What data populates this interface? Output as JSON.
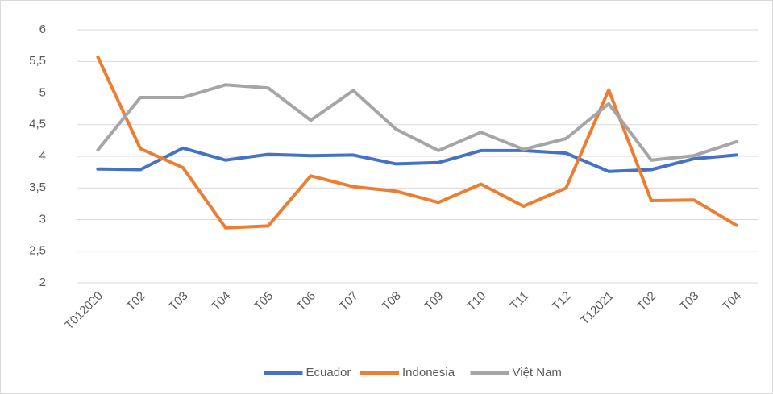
{
  "chart_data": {
    "type": "line",
    "categories": [
      "T012020",
      "T02",
      "T03",
      "T04",
      "T05",
      "T06",
      "T07",
      "T08",
      "T09",
      "T10",
      "T11",
      "T12",
      "T12021",
      "T02",
      "T03",
      "T04"
    ],
    "series": [
      {
        "name": "Ecuador",
        "color": "#4472c4",
        "values": [
          3.8,
          3.79,
          4.13,
          3.94,
          4.03,
          4.01,
          4.02,
          3.88,
          3.9,
          4.09,
          4.09,
          4.05,
          3.76,
          3.79,
          3.96,
          4.02
        ]
      },
      {
        "name": "Indonesia",
        "color": "#ed7d31",
        "values": [
          5.57,
          4.12,
          3.82,
          2.87,
          2.9,
          3.69,
          3.52,
          3.45,
          3.27,
          3.56,
          3.21,
          3.5,
          5.05,
          3.3,
          3.31,
          2.91
        ]
      },
      {
        "name": "Việt Nam",
        "color": "#a5a5a5",
        "values": [
          4.1,
          4.93,
          4.93,
          5.13,
          5.08,
          4.57,
          5.04,
          4.43,
          4.09,
          4.38,
          4.11,
          4.28,
          4.83,
          3.94,
          4.01,
          4.23
        ]
      }
    ],
    "ylim": [
      2,
      6
    ],
    "yticks": [
      2,
      {
        "value": 2.5,
        "label": "2,5"
      },
      3,
      {
        "value": 3.5,
        "label": "3,5"
      },
      4,
      {
        "value": 4.5,
        "label": "4,5"
      },
      5,
      {
        "value": 5.5,
        "label": "5,5"
      },
      6
    ],
    "grid": true,
    "legend": "bottom"
  }
}
